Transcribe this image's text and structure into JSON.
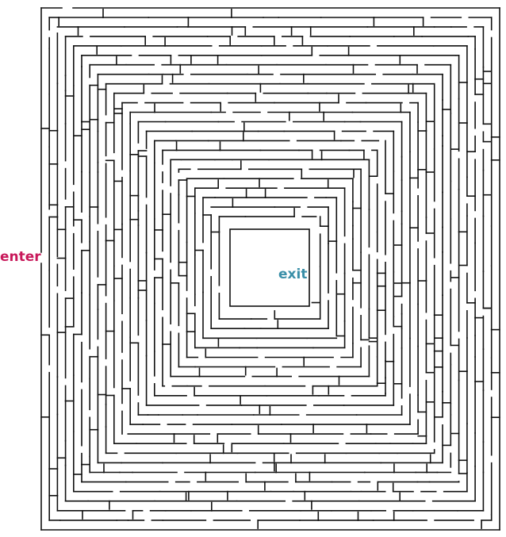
{
  "maze": {
    "enter_label": "enter",
    "exit_label": "exit",
    "colors": {
      "walls": "#111111",
      "background": "#ffffff",
      "enter": "#c8185a",
      "exit": "#3a8fa8"
    }
  }
}
